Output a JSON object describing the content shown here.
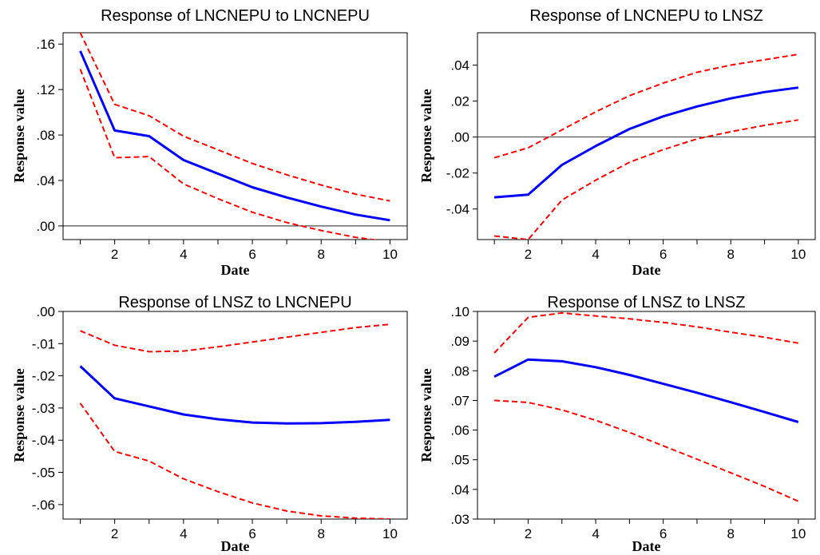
{
  "chart_data": [
    {
      "type": "line",
      "title": "Response of LNCNEPU to LNCNEPU",
      "xlabel": "Date",
      "ylabel": "Response value",
      "x": [
        1,
        2,
        3,
        4,
        5,
        6,
        7,
        8,
        9,
        10
      ],
      "x_ticks": [
        2,
        4,
        6,
        8,
        10
      ],
      "xlim": [
        0.5,
        10.5
      ],
      "ylim": [
        -0.012,
        0.17
      ],
      "y_ticks": [
        0.0,
        0.04,
        0.08,
        0.12,
        0.16
      ],
      "y_tick_labels": [
        ".00",
        ".04",
        ".08",
        ".12",
        ".16"
      ],
      "zero_line": true,
      "series": [
        {
          "role": "upper",
          "values": [
            0.17,
            0.107,
            0.097,
            0.079,
            0.067,
            0.055,
            0.045,
            0.036,
            0.028,
            0.022
          ],
          "color": "#ff0000",
          "dashed": true
        },
        {
          "role": "response",
          "values": [
            0.154,
            0.084,
            0.079,
            0.058,
            0.046,
            0.034,
            0.025,
            0.017,
            0.01,
            0.005
          ],
          "color": "#0000ff",
          "dashed": false
        },
        {
          "role": "lower",
          "values": [
            0.138,
            0.06,
            0.061,
            0.037,
            0.024,
            0.012,
            0.003,
            -0.004,
            -0.01,
            -0.014
          ],
          "color": "#ff0000",
          "dashed": true
        }
      ]
    },
    {
      "type": "line",
      "title": "Response of LNCNEPU to LNSZ",
      "xlabel": "Date",
      "ylabel": "Response value",
      "x": [
        1,
        2,
        3,
        4,
        5,
        6,
        7,
        8,
        9,
        10
      ],
      "x_ticks": [
        2,
        4,
        6,
        8,
        10
      ],
      "xlim": [
        0.5,
        10.5
      ],
      "ylim": [
        -0.057,
        0.058
      ],
      "y_ticks": [
        -0.04,
        -0.02,
        0.0,
        0.02,
        0.04
      ],
      "y_tick_labels": [
        "-.04",
        "-.02",
        ".00",
        ".02",
        ".04"
      ],
      "zero_line": true,
      "series": [
        {
          "role": "upper",
          "values": [
            -0.0115,
            -0.006,
            0.004,
            0.014,
            0.023,
            0.03,
            0.036,
            0.04,
            0.043,
            0.046
          ],
          "color": "#ff0000",
          "dashed": true
        },
        {
          "role": "response",
          "values": [
            -0.0335,
            -0.032,
            -0.0155,
            -0.005,
            0.0045,
            0.0115,
            0.017,
            0.0215,
            0.025,
            0.0275
          ],
          "color": "#0000ff",
          "dashed": false
        },
        {
          "role": "lower",
          "values": [
            -0.055,
            -0.057,
            -0.035,
            -0.024,
            -0.014,
            -0.007,
            -0.001,
            0.003,
            0.0065,
            0.0095
          ],
          "color": "#ff0000",
          "dashed": true
        }
      ]
    },
    {
      "type": "line",
      "title": "Response of LNSZ to LNCNEPU",
      "xlabel": "Date",
      "ylabel": "Response value",
      "x": [
        1,
        2,
        3,
        4,
        5,
        6,
        7,
        8,
        9,
        10
      ],
      "x_ticks": [
        2,
        4,
        6,
        8,
        10
      ],
      "xlim": [
        0.5,
        10.5
      ],
      "ylim": [
        -0.0645,
        0.0
      ],
      "y_ticks": [
        -0.06,
        -0.05,
        -0.04,
        -0.03,
        -0.02,
        -0.01,
        0.0
      ],
      "y_tick_labels": [
        "-.06",
        "-.05",
        "-.04",
        "-.03",
        "-.02",
        "-.01",
        ".00"
      ],
      "zero_line": false,
      "series": [
        {
          "role": "upper",
          "values": [
            -0.006,
            -0.0105,
            -0.0125,
            -0.0123,
            -0.011,
            -0.0095,
            -0.008,
            -0.0065,
            -0.005,
            -0.004
          ],
          "color": "#ff0000",
          "dashed": true
        },
        {
          "role": "response",
          "values": [
            -0.017,
            -0.027,
            -0.0295,
            -0.032,
            -0.0335,
            -0.0345,
            -0.0348,
            -0.0347,
            -0.0343,
            -0.0337
          ],
          "color": "#0000ff",
          "dashed": false
        },
        {
          "role": "lower",
          "values": [
            -0.0285,
            -0.0435,
            -0.0465,
            -0.052,
            -0.056,
            -0.0595,
            -0.062,
            -0.0635,
            -0.0642,
            -0.0645
          ],
          "color": "#ff0000",
          "dashed": true
        }
      ]
    },
    {
      "type": "line",
      "title": "Response of LNSZ to LNSZ",
      "xlabel": "Date",
      "ylabel": "Response value",
      "x": [
        1,
        2,
        3,
        4,
        5,
        6,
        7,
        8,
        9,
        10
      ],
      "x_ticks": [
        2,
        4,
        6,
        8,
        10
      ],
      "xlim": [
        0.5,
        10.5
      ],
      "ylim": [
        0.03,
        0.1
      ],
      "y_ticks": [
        0.03,
        0.04,
        0.05,
        0.06,
        0.07,
        0.08,
        0.09,
        0.1
      ],
      "y_tick_labels": [
        ".03",
        ".04",
        ".05",
        ".06",
        ".07",
        ".08",
        ".09",
        ".10"
      ],
      "zero_line": false,
      "series": [
        {
          "role": "upper",
          "values": [
            0.086,
            0.098,
            0.0995,
            0.0985,
            0.0975,
            0.0963,
            0.0948,
            0.093,
            0.0913,
            0.0893
          ],
          "color": "#ff0000",
          "dashed": true
        },
        {
          "role": "response",
          "values": [
            0.078,
            0.0838,
            0.0832,
            0.0812,
            0.0786,
            0.0756,
            0.0726,
            0.0694,
            0.0661,
            0.0627
          ],
          "color": "#0000ff",
          "dashed": false
        },
        {
          "role": "lower",
          "values": [
            0.07,
            0.0693,
            0.0668,
            0.0633,
            0.0592,
            0.0547,
            0.0502,
            0.0456,
            0.041,
            0.036
          ],
          "color": "#ff0000",
          "dashed": true
        }
      ]
    }
  ]
}
